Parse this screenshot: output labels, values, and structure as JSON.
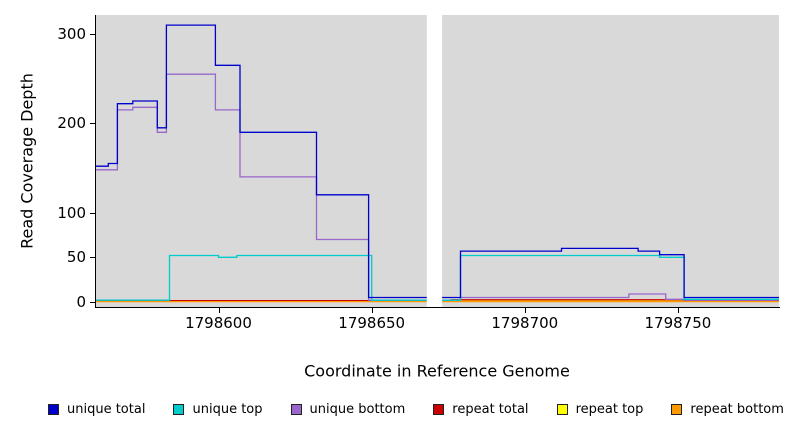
{
  "chart_data": {
    "type": "line",
    "title": "",
    "xlabel": "Coordinate in Reference Genome",
    "ylabel": "Read Coverage Depth",
    "xlim": [
      1798560,
      1798783
    ],
    "ylim": [
      0,
      310
    ],
    "x_ticks": [
      1798600,
      1798650,
      1798700,
      1798750
    ],
    "y_ticks": [
      0,
      50,
      100,
      200,
      300
    ],
    "plot_bg": "#d9d9d9",
    "gap": {
      "x_start": 1798668,
      "x_end": 1798673
    },
    "series": [
      {
        "name": "repeat top",
        "color": "#ffff00",
        "steps": [
          [
            1798560,
            1.2
          ]
        ]
      },
      {
        "name": "repeat total",
        "color": "#cc0000",
        "steps": [
          [
            1798560,
            1.5
          ],
          [
            1798676,
            2.5
          ],
          [
            1798752,
            1.5
          ]
        ]
      },
      {
        "name": "repeat bottom",
        "color": "#ff9900",
        "steps": [
          [
            1798560,
            0.5
          ]
        ]
      },
      {
        "name": "unique bottom",
        "color": "#9966cc",
        "steps": [
          [
            1798560,
            148
          ],
          [
            1798567,
            215
          ],
          [
            1798572,
            218
          ],
          [
            1798580,
            190
          ],
          [
            1798583,
            255
          ],
          [
            1798599,
            215
          ],
          [
            1798607,
            140
          ],
          [
            1798632,
            70
          ],
          [
            1798649,
            2
          ],
          [
            1798679,
            5
          ],
          [
            1798734,
            9
          ],
          [
            1798746,
            3
          ],
          [
            1798752,
            2
          ]
        ]
      },
      {
        "name": "unique top",
        "color": "#00cccc",
        "steps": [
          [
            1798560,
            2
          ],
          [
            1798584,
            52
          ],
          [
            1798600,
            50
          ],
          [
            1798606,
            52
          ],
          [
            1798650,
            2
          ],
          [
            1798679,
            52
          ],
          [
            1798744,
            50
          ],
          [
            1798752,
            3
          ]
        ]
      },
      {
        "name": "unique total",
        "color": "#0000cc",
        "steps": [
          [
            1798560,
            152
          ],
          [
            1798564,
            155
          ],
          [
            1798567,
            222
          ],
          [
            1798572,
            225
          ],
          [
            1798580,
            195
          ],
          [
            1798583,
            310
          ],
          [
            1798599,
            265
          ],
          [
            1798607,
            190
          ],
          [
            1798632,
            120
          ],
          [
            1798649,
            5
          ],
          [
            1798679,
            57
          ],
          [
            1798712,
            60
          ],
          [
            1798737,
            57
          ],
          [
            1798744,
            53
          ],
          [
            1798752,
            5
          ]
        ]
      }
    ],
    "legend": [
      {
        "label": "unique total",
        "color": "#0000cc"
      },
      {
        "label": "unique top",
        "color": "#00cccc"
      },
      {
        "label": "unique bottom",
        "color": "#9966cc"
      },
      {
        "label": "repeat total",
        "color": "#cc0000"
      },
      {
        "label": "repeat top",
        "color": "#ffff00"
      },
      {
        "label": "repeat bottom",
        "color": "#ff9900"
      }
    ]
  }
}
